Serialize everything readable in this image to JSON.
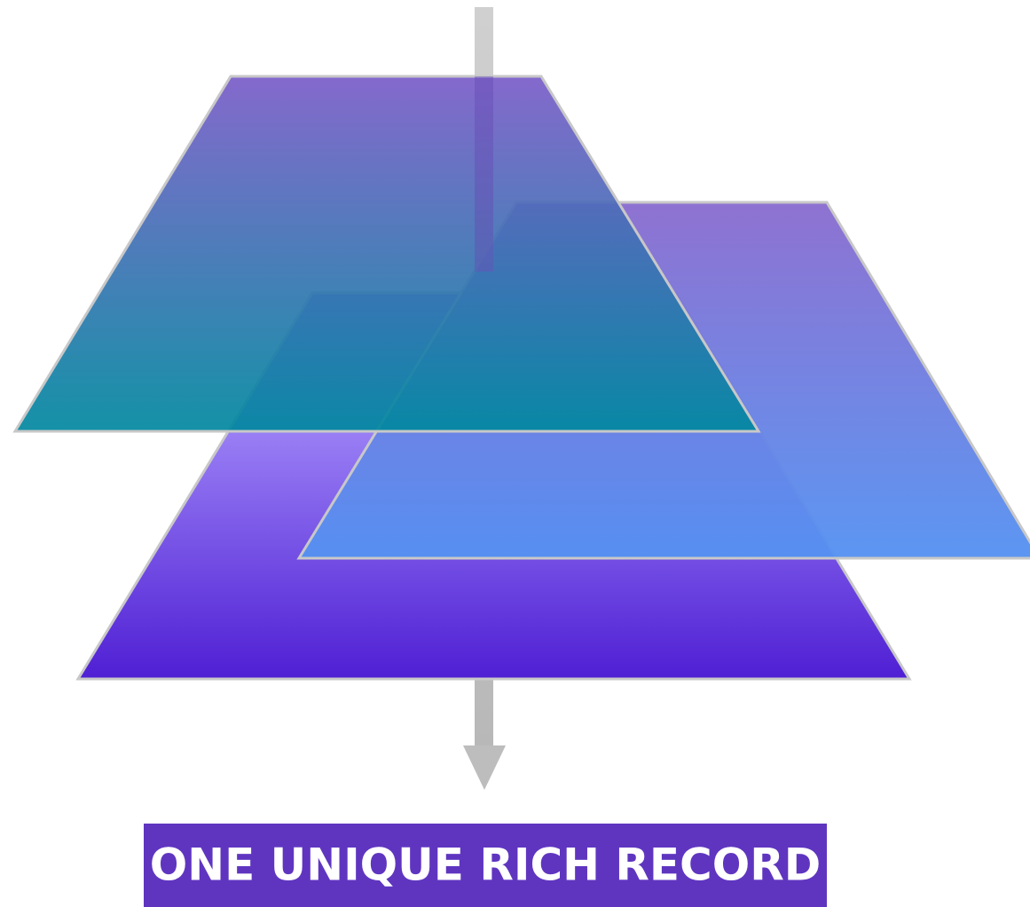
{
  "label": "ONE UNIQUE RICH RECORD"
}
